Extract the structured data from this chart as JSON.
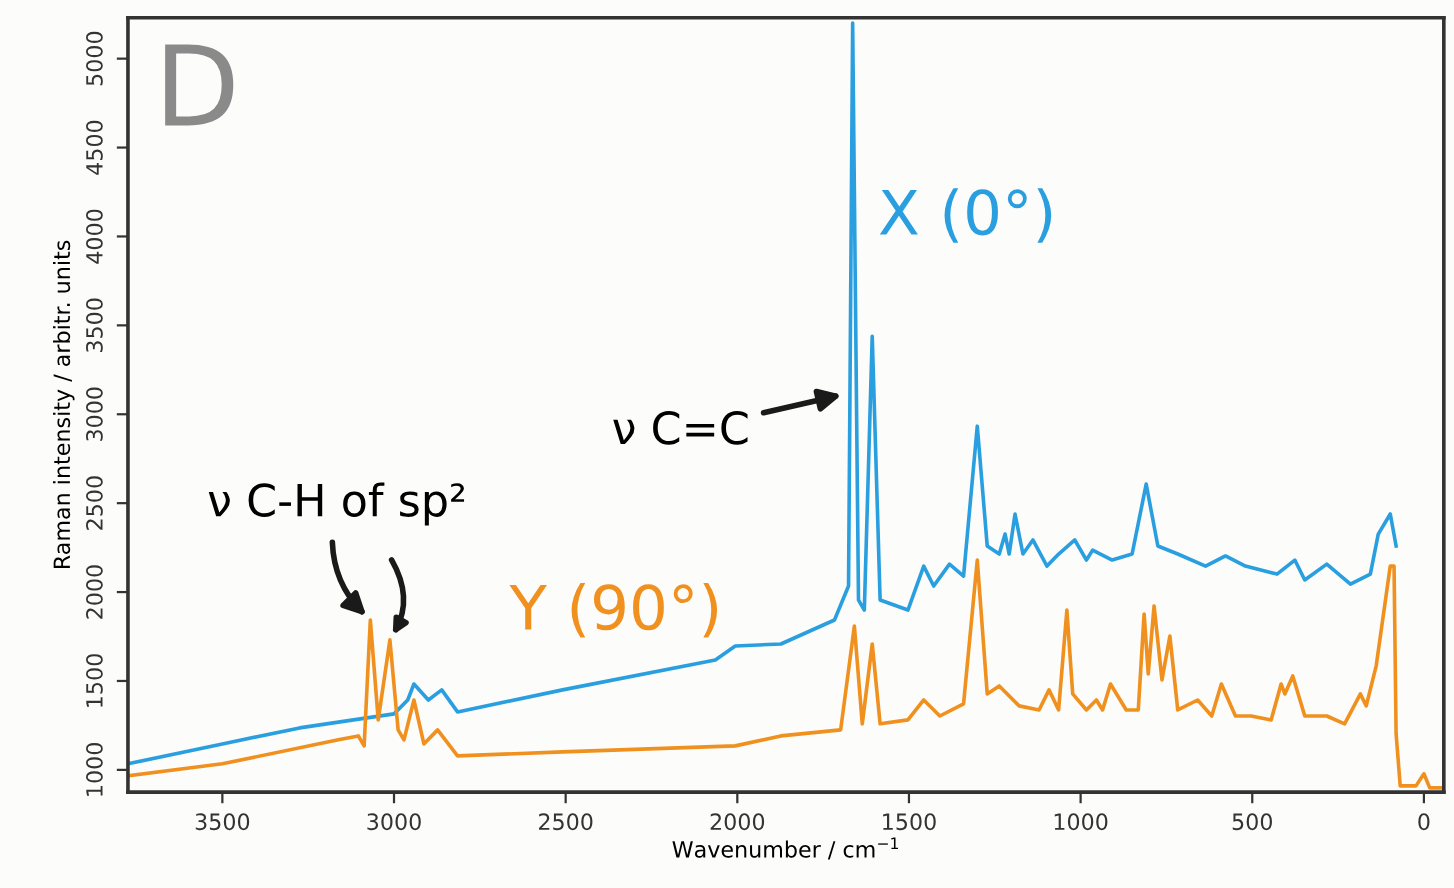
{
  "chart_data": {
    "type": "line",
    "title": "D",
    "xlabel": "Wavenumber / cm$^{−1}$",
    "ylabel": "Raman intensity / arbitr. units",
    "xlim": [
      3775,
      -58
    ],
    "ylim": [
      875,
      5230
    ],
    "xticks": [
      3500,
      3000,
      2500,
      2000,
      1500,
      1000,
      500,
      0
    ],
    "yticks": [
      1000,
      1500,
      2000,
      2500,
      3000,
      3500,
      4000,
      4500,
      5000
    ],
    "grid": false,
    "legend": false,
    "marker": "none",
    "line_style": "solid",
    "annotations": [
      {
        "text": "ν C=C",
        "x": 1672,
        "y": 3120
      },
      {
        "text": "ν C-H of sp²",
        "x": 3069,
        "y": 1843
      }
    ],
    "series": [
      {
        "name": "X (0°)",
        "color": "#2a9fe0",
        "x": [
          3775,
          3500,
          3275,
          3000,
          2960,
          2942,
          2900,
          2861,
          2815,
          2509,
          2064,
          2006,
          1873,
          1717,
          1676,
          1664,
          1647,
          1630,
          1607,
          1584,
          1503,
          1457,
          1428,
          1382,
          1341,
          1301,
          1272,
          1237,
          1220,
          1208,
          1191,
          1168,
          1139,
          1098,
          1064,
          1017,
          983,
          965,
          908,
          850,
          809,
          775,
          717,
          636,
          578,
          520,
          428,
          376,
          347,
          283,
          214,
          156,
          133,
          98,
          81
        ],
        "values": [
          1034,
          1146,
          1236,
          1315,
          1393,
          1483,
          1393,
          1450,
          1326,
          1450,
          1618,
          1697,
          1708,
          1843,
          2034,
          5200,
          1955,
          1899,
          3439,
          1955,
          1899,
          2146,
          2034,
          2157,
          2090,
          2933,
          2259,
          2214,
          2326,
          2214,
          2439,
          2214,
          2293,
          2146,
          2214,
          2293,
          2180,
          2236,
          2180,
          2214,
          2607,
          2259,
          2214,
          2146,
          2203,
          2146,
          2101,
          2180,
          2068,
          2157,
          2045,
          2101,
          2326,
          2439,
          2259
        ]
      },
      {
        "name": "Y (90°)",
        "color": "#f0901e",
        "x": [
          3775,
          3500,
          3162,
          3104,
          3087,
          3069,
          3046,
          3012,
          2988,
          2971,
          2942,
          2913,
          2873,
          2815,
          2509,
          2006,
          1873,
          1699,
          1659,
          1636,
          1607,
          1584,
          1503,
          1457,
          1410,
          1341,
          1301,
          1272,
          1237,
          1179,
          1121,
          1092,
          1064,
          1040,
          1023,
          983,
          954,
          936,
          913,
          867,
          832,
          815,
          803,
          786,
          763,
          740,
          717,
          659,
          618,
          590,
          549,
          503,
          445,
          416,
          405,
          382,
          347,
          283,
          231,
          185,
          168,
          139,
          98,
          87,
          81,
          69,
          23,
          0,
          -17,
          -55
        ],
        "values": [
          966,
          1034,
          1169,
          1191,
          1135,
          1843,
          1281,
          1731,
          1225,
          1169,
          1393,
          1146,
          1225,
          1079,
          1101,
          1135,
          1191,
          1225,
          1809,
          1259,
          1708,
          1259,
          1281,
          1393,
          1303,
          1371,
          2180,
          1427,
          1472,
          1360,
          1337,
          1450,
          1337,
          1899,
          1427,
          1337,
          1393,
          1337,
          1483,
          1337,
          1337,
          1877,
          1540,
          1922,
          1506,
          1753,
          1337,
          1393,
          1303,
          1483,
          1303,
          1303,
          1281,
          1483,
          1427,
          1528,
          1303,
          1303,
          1259,
          1427,
          1360,
          1585,
          2146,
          2146,
          1202,
          910,
          910,
          978,
          899,
          899
        ]
      }
    ]
  }
}
